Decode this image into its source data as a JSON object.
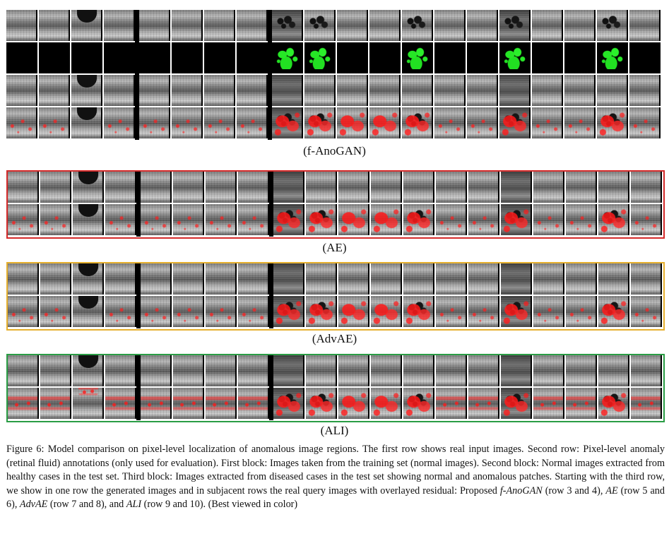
{
  "panels": [
    {
      "label": "(f-AnoGAN)",
      "border_color": "#000000",
      "rows": [
        "input",
        "annotation",
        "generated",
        "residual"
      ]
    },
    {
      "label": "(AE)",
      "border_color": "#d42a2a",
      "rows": [
        "generated",
        "residual"
      ]
    },
    {
      "label": "(AdvAE)",
      "border_color": "#e6b02e",
      "rows": [
        "generated",
        "residual"
      ]
    },
    {
      "label": "(ALI)",
      "border_color": "#2a9d45",
      "rows": [
        "generated",
        "residual"
      ]
    }
  ],
  "caption": {
    "figure": "Figure 6:",
    "text_1": " Model comparison on pixel-level localization of anomalous image regions. The first row shows real input images. Second row: Pixel-level anomaly (retinal fluid) annotations (only used for evaluation). First block: Images taken from the training set (normal images). Second block: Normal images extracted from healthy cases in the test set. Third block: Images extracted from diseased cases in the test set showing normal and anomalous patches. Starting with the third row, we show in one row the generated images and in subjacent rows the real query images with overlayed residual: Proposed ",
    "m1": "f-AnoGAN",
    "t1": " (row 3 and 4), ",
    "m2": "AE",
    "t2": " (row 5 and 6), ",
    "m3": "AdvAE",
    "t3": " (row 7 and 8), and ",
    "m4": "ALI",
    "t4": " (row 9 and 10). (Best viewed in color)"
  },
  "colors": {
    "annotation": "#26e626",
    "residual": "#ff1e1e",
    "ae_frame": "#d42a2a",
    "advae_frame": "#e6b02e",
    "ali_frame": "#2a9d45"
  }
}
